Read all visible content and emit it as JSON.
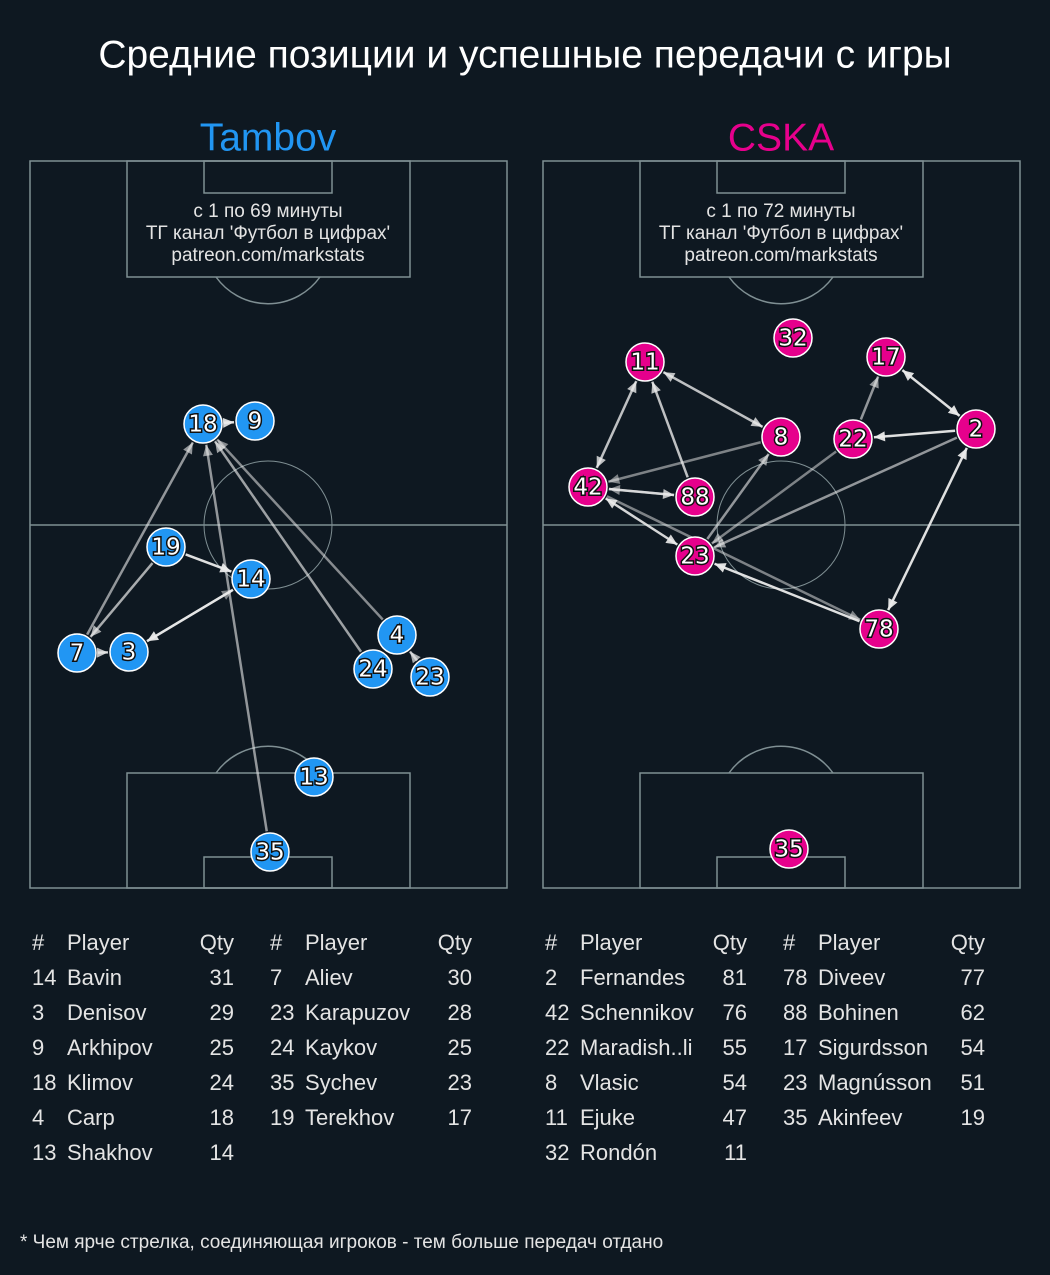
{
  "title": "Средние позиции и успешные передачи с игры",
  "footnote": "* Чем ярче стрелка, соединяющая игроков - тем больше передач отдано",
  "teams": [
    {
      "name": "Tambov",
      "color": "#2196f3",
      "period": "с 1 по 69 минуты",
      "channel": "ТГ канал 'Футбол в цифрах'",
      "site": "patreon.com/markstats",
      "nodes": [
        18,
        9,
        19,
        14,
        7,
        3,
        4,
        24,
        23,
        13,
        35
      ],
      "table": {
        "header": [
          "#",
          "Player",
          "Qty"
        ],
        "rows": [
          [
            14,
            "Bavin",
            31
          ],
          [
            3,
            "Denisov",
            29
          ],
          [
            9,
            "Arkhipov",
            25
          ],
          [
            18,
            "Klimov",
            24
          ],
          [
            4,
            "Carp",
            18
          ],
          [
            13,
            "Shakhov",
            14
          ],
          [
            7,
            "Aliev",
            30
          ],
          [
            23,
            "Karapuzov",
            28
          ],
          [
            24,
            "Kaykov",
            25
          ],
          [
            35,
            "Sychev",
            23
          ],
          [
            19,
            "Terekhov",
            17
          ]
        ]
      }
    },
    {
      "name": "CSKA",
      "color": "#e6008c",
      "period": "с 1 по 72 минуты",
      "channel": "ТГ канал 'Футбол в цифрах'",
      "site": "patreon.com/markstats",
      "nodes": [
        32,
        11,
        17,
        8,
        22,
        2,
        42,
        88,
        23,
        78,
        35
      ],
      "table": {
        "header": [
          "#",
          "Player",
          "Qty"
        ],
        "rows": [
          [
            2,
            "Fernandes",
            81
          ],
          [
            42,
            "Schennikov",
            76
          ],
          [
            22,
            "Maradish..li",
            55
          ],
          [
            8,
            "Vlasic",
            54
          ],
          [
            11,
            "Ejuke",
            47
          ],
          [
            32,
            "Rondón",
            11
          ],
          [
            78,
            "Diveev",
            77
          ],
          [
            88,
            "Bohinen",
            62
          ],
          [
            17,
            "Sigurdsson",
            54
          ],
          [
            23,
            "Magnússon",
            51
          ],
          [
            35,
            "Akinfeev",
            19
          ]
        ]
      }
    }
  ]
}
